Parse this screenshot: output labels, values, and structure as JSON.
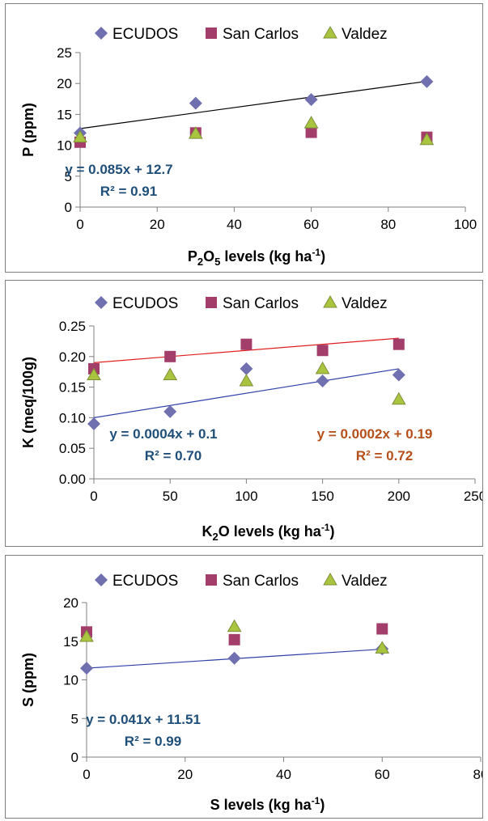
{
  "colors": {
    "ECUDOS": "#7070b0",
    "San Carlos": "#a33d6a",
    "Valdez": "#a9c43f",
    "valdez_edge": "#7f8f3a",
    "trend_black": "#000000",
    "trend_red": "#e02020",
    "trend_blue": "#2e40a8",
    "eq_blue": "#1f4e79",
    "eq_orange": "#b5501a",
    "axis": "#808080"
  },
  "legend": {
    "items": [
      "ECUDOS",
      "San Carlos",
      "Valdez"
    ]
  },
  "chart_data": [
    {
      "type": "scatter",
      "xlabel_main": "P",
      "xlabel_sub": "2",
      "xlabel_mid": "O",
      "xlabel_sub2": "5",
      "xlabel_rest": " levels (kg ha",
      "xlabel_sup": "-1",
      "xlabel_end": ")",
      "ylabel": "P (ppm)",
      "xlim": [
        0,
        100
      ],
      "ylim": [
        0,
        25
      ],
      "xticks": [
        "0",
        "20",
        "40",
        "60",
        "80",
        "100"
      ],
      "yticks": [
        "0",
        "5",
        "10",
        "15",
        "20",
        "25"
      ],
      "legend_position": "top",
      "series": [
        {
          "name": "ECUDOS",
          "marker": "diamond",
          "points": [
            [
              0,
              12.0
            ],
            [
              30,
              16.8
            ],
            [
              60,
              17.4
            ],
            [
              90,
              20.3
            ]
          ]
        },
        {
          "name": "San Carlos",
          "marker": "square",
          "points": [
            [
              0,
              10.5
            ],
            [
              30,
              12.0
            ],
            [
              60,
              12.1
            ],
            [
              90,
              11.3
            ]
          ]
        },
        {
          "name": "Valdez",
          "marker": "triangle",
          "points": [
            [
              0,
              11.3
            ],
            [
              30,
              11.9
            ],
            [
              60,
              13.6
            ],
            [
              90,
              10.9
            ]
          ]
        }
      ],
      "trendlines": [
        {
          "slope": 0.085,
          "intercept": 12.7,
          "x": [
            0,
            90
          ],
          "color_key": "trend_black"
        }
      ],
      "equations": [
        {
          "line1": "y = 0.085x + 12.7",
          "line2": "R² = 0.91",
          "color_key": "eq_blue"
        }
      ]
    },
    {
      "type": "scatter",
      "xlabel_main": "K",
      "xlabel_sub": "2",
      "xlabel_rest": "O levels (kg ha",
      "xlabel_sup": "-1",
      "xlabel_end": ")",
      "ylabel": "K (meq/100g)",
      "xlim": [
        0,
        250
      ],
      "ylim": [
        0,
        0.25
      ],
      "xticks": [
        "0",
        "50",
        "100",
        "150",
        "200",
        "250"
      ],
      "yticks": [
        "0.00",
        "0.05",
        "0.10",
        "0.15",
        "0.20",
        "0.25"
      ],
      "legend_position": "top",
      "series": [
        {
          "name": "ECUDOS",
          "marker": "diamond",
          "points": [
            [
              0,
              0.09
            ],
            [
              50,
              0.11
            ],
            [
              100,
              0.18
            ],
            [
              150,
              0.16
            ],
            [
              200,
              0.17
            ]
          ]
        },
        {
          "name": "San Carlos",
          "marker": "square",
          "points": [
            [
              0,
              0.18
            ],
            [
              50,
              0.2
            ],
            [
              100,
              0.22
            ],
            [
              150,
              0.21
            ],
            [
              200,
              0.22
            ]
          ]
        },
        {
          "name": "Valdez",
          "marker": "triangle",
          "points": [
            [
              0,
              0.17
            ],
            [
              50,
              0.17
            ],
            [
              100,
              0.16
            ],
            [
              150,
              0.18
            ],
            [
              200,
              0.13
            ]
          ]
        }
      ],
      "trendlines": [
        {
          "slope": 0.0002,
          "intercept": 0.19,
          "x": [
            0,
            200
          ],
          "color_key": "trend_red"
        },
        {
          "slope": 0.0004,
          "intercept": 0.1,
          "x": [
            0,
            200
          ],
          "color_key": "trend_blue"
        }
      ],
      "equations": [
        {
          "line1": "y = 0.0004x + 0.1",
          "line2": "R² = 0.70",
          "color_key": "eq_blue"
        },
        {
          "line1": "y = 0.0002x + 0.19",
          "line2": "R² = 0.72",
          "color_key": "eq_orange"
        }
      ]
    },
    {
      "type": "scatter",
      "xlabel_main": "S levels (kg ha",
      "xlabel_sup": "-1",
      "xlabel_end": ")",
      "ylabel": "S (ppm)",
      "xlim": [
        0,
        80
      ],
      "ylim": [
        0,
        20
      ],
      "xticks": [
        "0",
        "20",
        "40",
        "60",
        "80"
      ],
      "yticks": [
        "0",
        "5",
        "10",
        "15",
        "20"
      ],
      "legend_position": "top",
      "series": [
        {
          "name": "ECUDOS",
          "marker": "diamond",
          "points": [
            [
              0,
              11.5
            ],
            [
              30,
              12.8
            ],
            [
              60,
              14.0
            ]
          ]
        },
        {
          "name": "San Carlos",
          "marker": "square",
          "points": [
            [
              0,
              16.2
            ],
            [
              30,
              15.2
            ],
            [
              60,
              16.6
            ]
          ]
        },
        {
          "name": "Valdez",
          "marker": "triangle",
          "points": [
            [
              0,
              15.6
            ],
            [
              30,
              16.9
            ],
            [
              60,
              14.1
            ]
          ]
        }
      ],
      "trendlines": [
        {
          "slope": 0.041,
          "intercept": 11.51,
          "x": [
            0,
            60
          ],
          "color_key": "trend_blue"
        }
      ],
      "equations": [
        {
          "line1": "y = 0.041x + 11.51",
          "line2": "R² = 0.99",
          "color_key": "eq_blue"
        }
      ]
    }
  ]
}
